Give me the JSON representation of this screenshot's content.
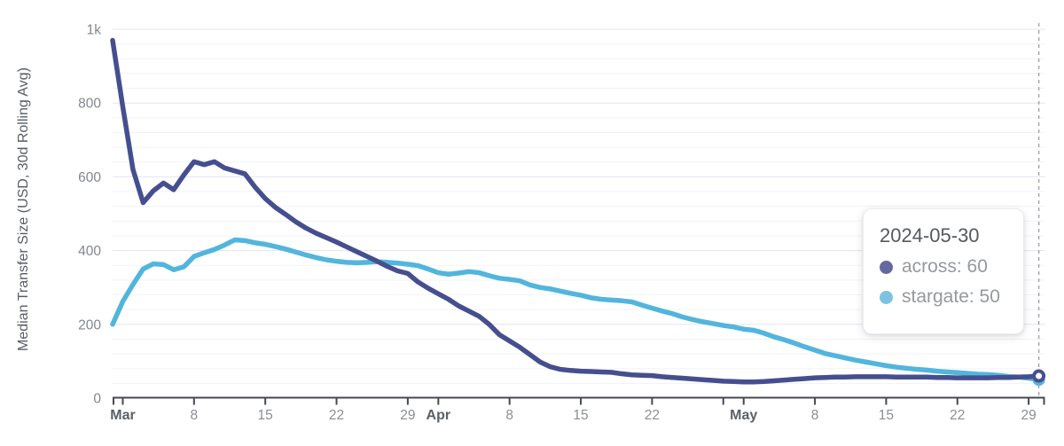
{
  "chart_data": {
    "type": "line",
    "title": "",
    "xlabel": "",
    "ylabel": "Median Transfer Size (USD, 30d Rolling Avg)",
    "start_date": "2024-02-29",
    "frequency": "daily",
    "ylim": [
      0,
      1000
    ],
    "y_minor_step": 40,
    "grid": true,
    "legend_position": "none",
    "y_ticks": [
      {
        "value": 0,
        "label": "0"
      },
      {
        "value": 200,
        "label": "200"
      },
      {
        "value": 400,
        "label": "400"
      },
      {
        "value": 600,
        "label": "600"
      },
      {
        "value": 800,
        "label": "800"
      },
      {
        "value": 1000,
        "label": "1k"
      }
    ],
    "x_ticks": [
      {
        "date": "2024-03-01",
        "label": "Mar",
        "emphasis": true
      },
      {
        "date": "2024-03-08",
        "label": "8"
      },
      {
        "date": "2024-03-15",
        "label": "15"
      },
      {
        "date": "2024-03-22",
        "label": "22"
      },
      {
        "date": "2024-03-29",
        "label": "29"
      },
      {
        "date": "2024-04-01",
        "label": "Apr",
        "emphasis": true
      },
      {
        "date": "2024-04-08",
        "label": "8"
      },
      {
        "date": "2024-04-15",
        "label": "15"
      },
      {
        "date": "2024-04-22",
        "label": "22"
      },
      {
        "date": "2024-04-29",
        "label": ""
      },
      {
        "date": "2024-05-01",
        "label": "May",
        "emphasis": true
      },
      {
        "date": "2024-05-08",
        "label": "8"
      },
      {
        "date": "2024-05-15",
        "label": "15"
      },
      {
        "date": "2024-05-22",
        "label": "22"
      },
      {
        "date": "2024-05-29",
        "label": "29"
      }
    ],
    "series": [
      {
        "name": "stargate",
        "color": "#52b5dc",
        "values": [
          200,
          262,
          308,
          350,
          364,
          362,
          348,
          356,
          384,
          394,
          403,
          415,
          429,
          427,
          421,
          417,
          411,
          404,
          396,
          388,
          381,
          375,
          371,
          368,
          367,
          368,
          370,
          368,
          366,
          363,
          359,
          350,
          340,
          336,
          339,
          343,
          340,
          332,
          325,
          322,
          318,
          307,
          300,
          296,
          290,
          284,
          279,
          272,
          268,
          266,
          264,
          261,
          252,
          244,
          236,
          229,
          220,
          213,
          207,
          202,
          197,
          193,
          187,
          184,
          176,
          166,
          158,
          149,
          139,
          130,
          121,
          115,
          109,
          103,
          98,
          93,
          88,
          84,
          81,
          78,
          76,
          73,
          71,
          69,
          67,
          65,
          64,
          62,
          59,
          57,
          54,
          50
        ]
      },
      {
        "name": "across",
        "color": "#454f8f",
        "values": [
          970,
          790,
          620,
          530,
          562,
          583,
          565,
          605,
          641,
          633,
          641,
          624,
          616,
          608,
          572,
          541,
          517,
          498,
          478,
          461,
          447,
          435,
          423,
          410,
          397,
          384,
          371,
          357,
          345,
          338,
          315,
          298,
          283,
          268,
          250,
          236,
          222,
          200,
          172,
          155,
          138,
          118,
          98,
          85,
          78,
          75,
          73,
          72,
          71,
          70,
          66,
          63,
          62,
          61,
          58,
          56,
          54,
          52,
          50,
          48,
          46,
          45,
          44,
          44,
          45,
          47,
          49,
          51,
          53,
          55,
          56,
          57,
          57,
          58,
          58,
          58,
          58,
          57,
          57,
          57,
          57,
          56,
          56,
          55,
          55,
          55,
          55,
          56,
          56,
          57,
          58,
          60
        ]
      }
    ]
  },
  "tooltip": {
    "date": "2024-05-30",
    "rows": [
      {
        "name": "across",
        "value": 60,
        "text": "across: 60",
        "dot_color": "#646a9f"
      },
      {
        "name": "stargate",
        "value": 50,
        "text": "stargate: 50",
        "dot_color": "#7cc3e1"
      }
    ]
  },
  "hover": {
    "date": "2024-05-30"
  }
}
